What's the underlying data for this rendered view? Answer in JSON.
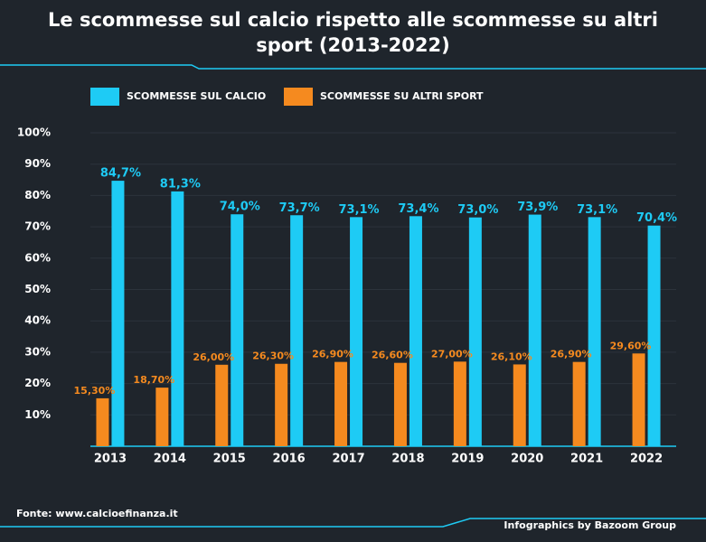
{
  "chart_data": {
    "type": "bar",
    "title": "Le scommesse sul calcio rispetto alle scommesse su altri sport (2013-2022)",
    "categories": [
      "2013",
      "2014",
      "2015",
      "2016",
      "2017",
      "2018",
      "2019",
      "2020",
      "2021",
      "2022"
    ],
    "series": [
      {
        "name": "SCOMMESSE SUL CALCIO",
        "color": "#1ecbf5",
        "values": [
          84.7,
          81.3,
          74.0,
          73.7,
          73.1,
          73.4,
          73.0,
          73.9,
          73.1,
          70.4
        ],
        "value_labels": [
          "84,7%",
          "81,3%",
          "74,0%",
          "73,7%",
          "73,1%",
          "73,4%",
          "73,0%",
          "73,9%",
          "73,1%",
          "70,4%"
        ]
      },
      {
        "name": "SCOMMESSE SU ALTRI SPORT",
        "color": "#f58a1f",
        "values": [
          15.3,
          18.7,
          26.0,
          26.3,
          26.9,
          26.6,
          27.0,
          26.1,
          26.9,
          29.6
        ],
        "value_labels": [
          "15,30%",
          "18,70%",
          "26,00%",
          "26,30%",
          "26,90%",
          "26,60%",
          "27,00%",
          "26,10%",
          "26,90%",
          "29,60%"
        ]
      }
    ],
    "ylim": [
      0,
      100
    ],
    "yticks": [
      {
        "value": 10,
        "label": "10%"
      },
      {
        "value": 20,
        "label": "20%"
      },
      {
        "value": 30,
        "label": "30%"
      },
      {
        "value": 40,
        "label": "40%"
      },
      {
        "value": 50,
        "label": "50%"
      },
      {
        "value": 60,
        "label": "60%"
      },
      {
        "value": 70,
        "label": "70%"
      },
      {
        "value": 80,
        "label": "80%"
      },
      {
        "value": 90,
        "label": "90%"
      },
      {
        "value": 100,
        "label": "100%"
      }
    ],
    "grid": true,
    "source": "Fonte: www.calcioefinanza.it",
    "credit": "Infographics by Bazoom Group"
  }
}
